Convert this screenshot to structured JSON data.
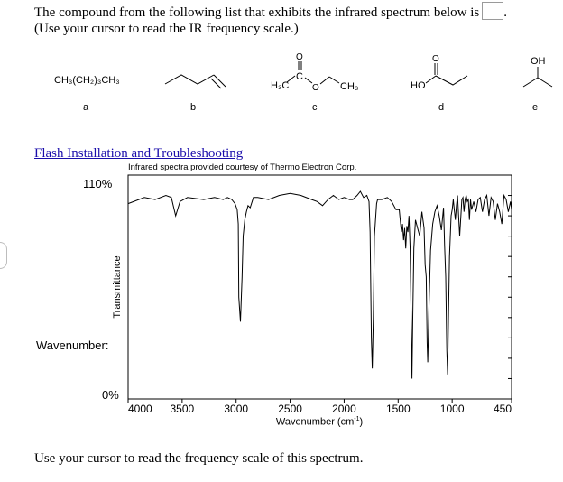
{
  "question": {
    "line1": "The compound from the following list that exhibits the infrared spectrum below is",
    "line2": "(Use your cursor to read the IR frequency scale.)",
    "answer_value": ""
  },
  "compounds": [
    {
      "letter": "a",
      "formula": "CH₃(CH₂)₃CH₃"
    },
    {
      "letter": "b",
      "structure": "alkene skeletal"
    },
    {
      "letter": "c",
      "left_group": "H₃C",
      "carbon": "C",
      "carbonyl_o": "O",
      "ester_o": "O",
      "right_group": "CH₃"
    },
    {
      "letter": "d",
      "acid_group": "HO",
      "carbonyl_o": "O"
    },
    {
      "letter": "e",
      "alcohol_group": "OH"
    }
  ],
  "link": {
    "text": "Flash Installation and Troubleshooting"
  },
  "credit": "Infrared spectra provided courtesy of Thermo Electron Corp.",
  "axes": {
    "y_top": "110%",
    "y_bottom": "0%",
    "y_title": "Transmittance",
    "x_title": "Wavenumber (cm",
    "x_title_sup": "-1",
    "x_title_close": ")",
    "wavenumber_label": "Wavenumber:"
  },
  "footer": "Use your cursor to read the frequency scale of this spectrum.",
  "chart_data": {
    "type": "line",
    "xlabel": "Wavenumber (cm-1)",
    "ylabel": "Transmittance",
    "xlim": [
      4000,
      450
    ],
    "ylim": [
      0,
      110
    ],
    "x_ticks": [
      {
        "value": 4000,
        "label": "4000"
      },
      {
        "value": 3500,
        "label": "3500"
      },
      {
        "value": 3000,
        "label": "3000"
      },
      {
        "value": 2500,
        "label": "2500"
      },
      {
        "value": 2000,
        "label": "2000"
      },
      {
        "value": 1500,
        "label": "1500"
      },
      {
        "value": 1000,
        "label": "1000"
      },
      {
        "value": 450,
        "label": "450"
      }
    ],
    "series": [
      {
        "x": [
          4000,
          3850,
          3750,
          3650,
          3600,
          3560,
          3520,
          3450,
          3300,
          3200,
          3120,
          3080,
          3040,
          3010,
          2990,
          2980,
          2975,
          2960,
          2945,
          2935,
          2920,
          2905,
          2890,
          2870,
          2840,
          2800,
          2700,
          2600,
          2500,
          2400,
          2300,
          2250,
          2200,
          2150,
          2100,
          2050,
          2000,
          1950,
          1920,
          1880,
          1850,
          1820,
          1790,
          1770,
          1760,
          1748,
          1740,
          1730,
          1720,
          1700,
          1690,
          1650,
          1600,
          1560,
          1520,
          1490,
          1470,
          1460,
          1450,
          1440,
          1430,
          1420,
          1410,
          1400,
          1390,
          1380,
          1372,
          1365,
          1355,
          1340,
          1320,
          1300,
          1280,
          1260,
          1250,
          1240,
          1232,
          1226,
          1215,
          1200,
          1180,
          1160,
          1140,
          1120,
          1100,
          1080,
          1070,
          1060,
          1050,
          1042,
          1035,
          1025,
          1010,
          1000,
          990,
          980,
          970,
          960,
          950,
          930,
          910,
          900,
          890,
          880,
          870,
          860,
          850,
          840,
          830,
          820,
          800,
          780,
          760,
          740,
          720,
          700,
          680,
          660,
          640,
          620,
          600,
          580,
          560,
          540,
          520,
          500,
          480,
          460,
          450
        ],
        "y": [
          96,
          99,
          98,
          100,
          99,
          90,
          97,
          99,
          98,
          99,
          98,
          99,
          98,
          96,
          93,
          86,
          50,
          38,
          60,
          80,
          88,
          92,
          95,
          94,
          99,
          99,
          98,
          100,
          101,
          100,
          98,
          97,
          95,
          98,
          100,
          98,
          99,
          98,
          98,
          100,
          102,
          99,
          100,
          97,
          82,
          30,
          15,
          40,
          80,
          96,
          98,
          98,
          99,
          97,
          93,
          93,
          82,
          86,
          78,
          84,
          74,
          85,
          82,
          90,
          75,
          40,
          10,
          40,
          74,
          88,
          84,
          80,
          92,
          84,
          66,
          60,
          28,
          18,
          44,
          73,
          86,
          92,
          95,
          90,
          83,
          94,
          75,
          60,
          24,
          12,
          38,
          70,
          90,
          93,
          98,
          93,
          88,
          95,
          100,
          80,
          98,
          99,
          92,
          98,
          100,
          97,
          98,
          88,
          98,
          93,
          97,
          92,
          98,
          99,
          92,
          98,
          100,
          90,
          99,
          97,
          88,
          96,
          92,
          86,
          100,
          98,
          92,
          97,
          93
        ]
      }
    ]
  }
}
